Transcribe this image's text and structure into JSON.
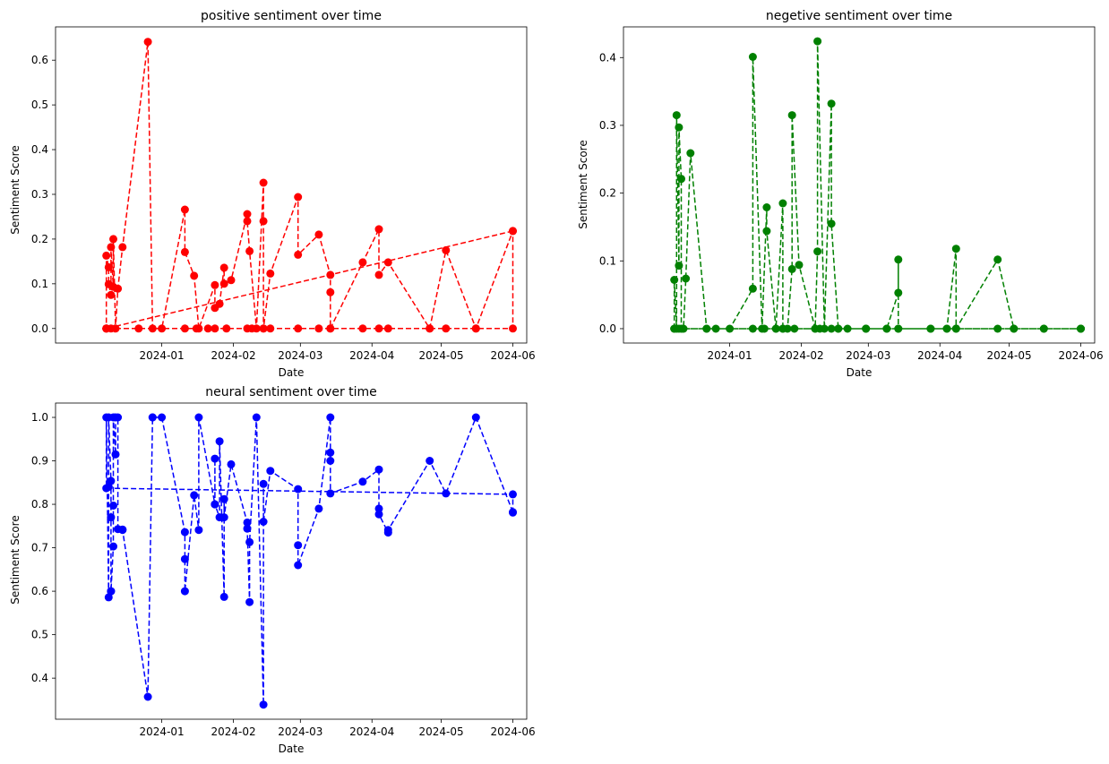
{
  "chart_data": [
    {
      "type": "line",
      "title": "positive sentiment over time",
      "xlabel": "Date",
      "ylabel": "Sentiment Score",
      "color": "#ff0000",
      "line_style": "dashed",
      "marker": "circle",
      "xlim": [
        "2023-11-16",
        "2024-06-07"
      ],
      "ylim": [
        -0.0325,
        0.6745
      ],
      "xticks": [
        "2024-01-01",
        "2024-02-01",
        "2024-03-01",
        "2024-04-01",
        "2024-05-01",
        "2024-06-01"
      ],
      "xtick_labels": [
        "2024-01",
        "2024-02",
        "2024-03",
        "2024-04",
        "2024-05",
        "2024-06"
      ],
      "yticks": [
        0.0,
        0.1,
        0.2,
        0.3,
        0.4,
        0.5,
        0.6
      ],
      "ytick_labels": [
        "0.0",
        "0.1",
        "0.2",
        "0.3",
        "0.4",
        "0.5",
        "0.6"
      ],
      "series": [
        {
          "x": [
            "2024-06-01",
            "2023-12-08",
            "2023-12-10",
            "2023-12-22",
            "2024-01-11",
            "2024-01-16",
            "2024-01-21",
            "2024-01-24",
            "2024-01-29",
            "2024-02-07",
            "2024-02-09",
            "2024-02-14",
            "2024-02-17",
            "2024-02-29",
            "2024-03-09",
            "2024-03-14",
            "2024-03-28",
            "2024-04-04",
            "2024-04-08",
            "2024-04-26",
            "2024-05-03",
            "2024-05-16",
            "2024-06-01",
            "2024-06-01",
            "2024-05-16",
            "2024-05-03",
            "2024-04-26",
            "2024-04-08",
            "2024-04-04",
            "2024-04-04",
            "2024-03-28",
            "2024-03-14",
            "2024-03-14",
            "2024-03-14",
            "2024-03-09",
            "2024-02-29",
            "2024-02-29",
            "2024-02-17",
            "2024-02-14",
            "2024-02-14",
            "2024-02-14",
            "2024-02-11",
            "2024-02-08",
            "2024-02-07",
            "2024-02-07",
            "2024-01-31",
            "2024-01-28",
            "2024-01-28",
            "2024-01-26",
            "2024-01-24",
            "2024-01-24",
            "2024-01-17",
            "2024-01-15",
            "2024-01-11",
            "2024-01-11",
            "2024-01-01",
            "2023-12-28",
            "2023-12-26",
            "2023-12-15",
            "2023-12-13",
            "2023-12-12",
            "2023-12-11",
            "2023-12-11",
            "2023-12-10",
            "2023-12-10",
            "2023-12-09",
            "2023-12-09",
            "2023-12-08",
            "2023-12-08",
            "2023-12-08",
            "2023-12-08"
          ],
          "y": [
            0.218,
            0.0,
            0.0,
            0.0,
            0.0,
            0.0,
            0.0,
            0.0,
            0.0,
            0.0,
            0.0,
            0.0,
            0.0,
            0.0,
            0.0,
            0.0,
            0.0,
            0.0,
            0.0,
            0.0,
            0.0,
            0.0,
            0.0,
            0.218,
            0.0,
            0.175,
            0.0,
            0.148,
            0.12,
            0.222,
            0.148,
            0.0,
            0.081,
            0.12,
            0.21,
            0.165,
            0.294,
            0.123,
            0.0,
            0.24,
            0.326,
            0.0,
            0.173,
            0.24,
            0.256,
            0.108,
            0.1,
            0.136,
            0.055,
            0.046,
            0.097,
            0.0,
            0.118,
            0.171,
            0.266,
            0.0,
            0.0,
            0.641,
            0.182,
            0.089,
            0.0,
            0.2,
            0.093,
            0.182,
            0.075,
            0.099,
            0.137,
            0.163,
            0.0,
            0.0,
            0.0
          ]
        }
      ]
    },
    {
      "type": "line",
      "title": "negetive sentiment over time",
      "xlabel": "Date",
      "ylabel": "Sentiment Score",
      "color": "#008000",
      "line_style": "dashed",
      "marker": "circle",
      "xlim": [
        "2023-11-16",
        "2024-06-07"
      ],
      "ylim": [
        -0.0212,
        0.4453
      ],
      "xticks": [
        "2024-01-01",
        "2024-02-01",
        "2024-03-01",
        "2024-04-01",
        "2024-05-01",
        "2024-06-01"
      ],
      "xtick_labels": [
        "2024-01",
        "2024-02",
        "2024-03",
        "2024-04",
        "2024-05",
        "2024-06"
      ],
      "yticks": [
        0.0,
        0.1,
        0.2,
        0.3,
        0.4
      ],
      "ytick_labels": [
        "0.0",
        "0.1",
        "0.2",
        "0.3",
        "0.4"
      ],
      "series": [
        {
          "x": [
            "2023-12-08",
            "2023-12-08",
            "2023-12-09",
            "2023-12-09",
            "2023-12-10",
            "2023-12-10",
            "2023-12-11",
            "2023-12-11",
            "2023-12-12",
            "2023-12-13",
            "2023-12-15",
            "2023-12-22",
            "2023-12-26",
            "2024-01-01",
            "2024-01-11",
            "2024-01-11",
            "2024-01-15",
            "2024-01-17",
            "2024-01-17",
            "2024-01-21",
            "2024-01-24",
            "2024-01-24",
            "2024-01-26",
            "2024-01-28",
            "2024-01-28",
            "2024-01-31",
            "2024-02-07",
            "2024-02-08",
            "2024-02-08",
            "2024-02-11",
            "2024-02-14",
            "2024-02-14",
            "2024-02-17",
            "2024-02-21",
            "2024-02-29",
            "2024-02-29",
            "2024-03-09",
            "2024-03-14",
            "2024-03-14",
            "2024-03-14",
            "2024-03-28",
            "2024-04-04",
            "2024-04-08",
            "2024-04-08",
            "2024-04-26",
            "2024-05-03",
            "2024-05-16",
            "2024-06-01",
            "2024-06-01",
            "2024-05-16",
            "2024-05-03",
            "2024-04-26",
            "2024-04-08",
            "2024-04-04",
            "2024-03-28",
            "2024-03-14",
            "2024-03-09",
            "2024-02-29",
            "2024-02-17",
            "2024-02-14",
            "2024-02-09",
            "2024-02-07",
            "2024-01-29",
            "2024-01-24",
            "2024-01-21",
            "2024-01-16",
            "2024-01-11",
            "2023-12-22",
            "2023-12-10",
            "2023-12-08",
            "2024-06-01"
          ],
          "y": [
            0.0,
            0.072,
            0.0,
            0.315,
            0.093,
            0.297,
            0.221,
            0.0,
            0.0,
            0.074,
            0.259,
            0.0,
            0.0,
            0.0,
            0.059,
            0.401,
            0.0,
            0.179,
            0.144,
            0.0,
            0.185,
            0.0,
            0.0,
            0.088,
            0.315,
            0.094,
            0.0,
            0.114,
            0.424,
            0.0,
            0.332,
            0.155,
            0.0,
            0.0,
            0.0,
            0.0,
            0.0,
            0.053,
            0.102,
            0.0,
            0.0,
            0.0,
            0.118,
            0.0,
            0.102,
            0.0,
            0.0,
            0.0,
            0.0,
            0.0,
            0.0,
            0.0,
            0.0,
            0.0,
            0.0,
            0.0,
            0.0,
            0.0,
            0.0,
            0.0,
            0.0,
            0.0,
            0.0,
            0.0,
            0.0,
            0.0,
            0.0,
            0.0,
            0.0,
            0.0,
            0.0
          ]
        }
      ]
    },
    {
      "type": "line",
      "title": "neural sentiment over time",
      "xlabel": "Date",
      "ylabel": "Sentiment Score",
      "color": "#0000ff",
      "line_style": "dashed",
      "marker": "circle",
      "xlim": [
        "2023-11-16",
        "2024-06-07"
      ],
      "ylim": [
        0.3055,
        1.033
      ],
      "xticks": [
        "2024-01-01",
        "2024-02-01",
        "2024-03-01",
        "2024-04-01",
        "2024-05-01",
        "2024-06-01"
      ],
      "xtick_labels": [
        "2024-01",
        "2024-02",
        "2024-03",
        "2024-04",
        "2024-05",
        "2024-06"
      ],
      "yticks": [
        0.4,
        0.5,
        0.6,
        0.7,
        0.8,
        0.9,
        1.0
      ],
      "ytick_labels": [
        "0.4",
        "0.5",
        "0.6",
        "0.7",
        "0.8",
        "0.9",
        "1.0"
      ],
      "series": [
        {
          "x": [
            "2024-06-01",
            "2024-05-16",
            "2024-05-03",
            "2024-04-26",
            "2024-04-08",
            "2024-04-08",
            "2024-04-04",
            "2024-04-04",
            "2024-04-04",
            "2024-03-28",
            "2024-03-14",
            "2024-03-14",
            "2024-03-14",
            "2024-03-14",
            "2024-03-09",
            "2024-02-29",
            "2024-02-29",
            "2024-02-29",
            "2024-02-17",
            "2024-02-14",
            "2024-02-14",
            "2024-02-14",
            "2024-02-11",
            "2024-02-08",
            "2024-02-08",
            "2024-02-07",
            "2024-02-07",
            "2024-01-31",
            "2024-01-28",
            "2024-01-28",
            "2024-01-28",
            "2024-01-26",
            "2024-01-26",
            "2024-01-24",
            "2024-01-24",
            "2024-01-24",
            "2024-01-17",
            "2024-01-17",
            "2024-01-15",
            "2024-01-11",
            "2024-01-11",
            "2024-01-11",
            "2024-01-01",
            "2023-12-28",
            "2023-12-28",
            "2023-12-26",
            "2023-12-15",
            "2023-12-15",
            "2023-12-13",
            "2023-12-13",
            "2023-12-12",
            "2023-12-12",
            "2023-12-11",
            "2023-12-11",
            "2023-12-11",
            "2023-12-10",
            "2023-12-10",
            "2023-12-10",
            "2023-12-10",
            "2023-12-09",
            "2023-12-09",
            "2023-12-09",
            "2023-12-08",
            "2023-12-08",
            "2024-06-01",
            "2024-06-01"
          ],
          "y": [
            0.782,
            1.0,
            0.825,
            0.9,
            0.741,
            0.735,
            0.777,
            0.79,
            0.88,
            0.852,
            0.825,
            0.9,
            0.919,
            1.0,
            0.79,
            0.66,
            0.706,
            0.835,
            0.877,
            0.76,
            0.847,
            0.339,
            1.0,
            0.713,
            0.575,
            0.744,
            0.758,
            0.892,
            0.77,
            0.812,
            0.587,
            0.945,
            0.77,
            0.8,
            0.905,
            0.8,
            1.0,
            0.741,
            0.821,
            0.6,
            0.674,
            0.736,
            1.0,
            1.0,
            1.0,
            0.357,
            0.741,
            0.742,
            0.743,
            1.0,
            1.0,
            0.915,
            1.0,
            0.797,
            0.703,
            0.6,
            0.6,
            0.77,
            0.854,
            1.0,
            0.84,
            0.586,
            1.0,
            0.837,
            0.823,
            0.781
          ]
        }
      ]
    }
  ]
}
